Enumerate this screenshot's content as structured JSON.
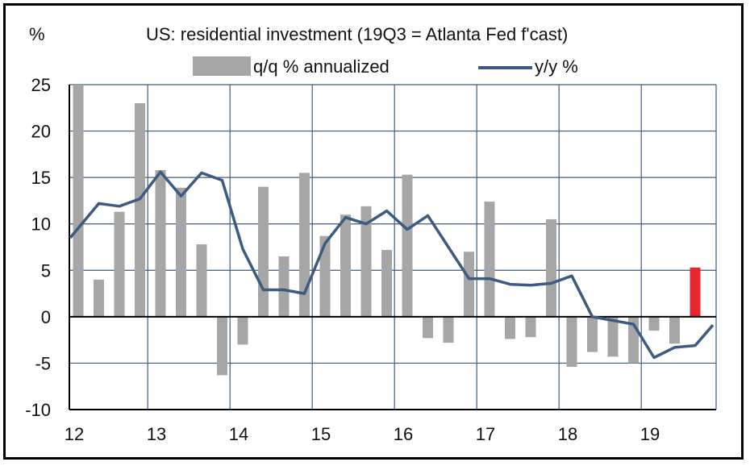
{
  "chart_data": {
    "type": "bar+line",
    "title": "US: residential investment (19Q3 = Atlanta Fed f'cast)",
    "ylabel": "%",
    "xlabel": "",
    "ylim": [
      -10,
      25
    ],
    "yticks": [
      25,
      20,
      15,
      10,
      5,
      0,
      -5,
      -10
    ],
    "xticks": [
      {
        "label": "12",
        "quarter_index": 0
      },
      {
        "label": "13",
        "quarter_index": 4
      },
      {
        "label": "14",
        "quarter_index": 8
      },
      {
        "label": "15",
        "quarter_index": 12
      },
      {
        "label": "16",
        "quarter_index": 16
      },
      {
        "label": "17",
        "quarter_index": 20
      },
      {
        "label": "18",
        "quarter_index": 24
      },
      {
        "label": "19",
        "quarter_index": 28
      }
    ],
    "grid": true,
    "legend_position": "top",
    "categories": [
      "12Q1",
      "12Q2",
      "12Q3",
      "12Q4",
      "13Q1",
      "13Q2",
      "13Q3",
      "13Q4",
      "14Q1",
      "14Q2",
      "14Q3",
      "14Q4",
      "15Q1",
      "15Q2",
      "15Q3",
      "15Q4",
      "16Q1",
      "16Q2",
      "16Q3",
      "16Q4",
      "17Q1",
      "17Q2",
      "17Q3",
      "17Q4",
      "18Q1",
      "18Q2",
      "18Q3",
      "18Q4",
      "19Q1",
      "19Q2",
      "19Q3"
    ],
    "series": [
      {
        "name": "q/q % annualized",
        "kind": "bar",
        "color": "#a6a6a6",
        "forecast_color": "#e8262d",
        "forecast_index": 30,
        "values": [
          25.0,
          4.0,
          11.3,
          23.0,
          15.8,
          13.9,
          7.8,
          -6.3,
          -3.0,
          14.0,
          6.5,
          15.5,
          8.7,
          11.0,
          11.9,
          7.2,
          15.3,
          -2.3,
          -2.8,
          7.0,
          12.4,
          -2.4,
          -2.2,
          10.5,
          -5.4,
          -3.8,
          -4.3,
          -5.0,
          -1.5,
          -2.9,
          5.3
        ]
      },
      {
        "name": "y/y %",
        "kind": "line",
        "color": "#3d5a80",
        "values": [
          8.5,
          12.2,
          11.9,
          12.7,
          15.6,
          13.0,
          15.5,
          14.7,
          7.3,
          2.9,
          2.9,
          2.5,
          7.9,
          10.7,
          10.0,
          11.4,
          9.4,
          10.9,
          7.5,
          4.1,
          4.1,
          3.5,
          3.4,
          3.6,
          4.4,
          0.0,
          -0.4,
          -0.8,
          -4.4,
          -3.3,
          -3.1
        ]
      }
    ],
    "line_tail": {
      "category": "19Q3 f",
      "value": -0.9
    }
  }
}
